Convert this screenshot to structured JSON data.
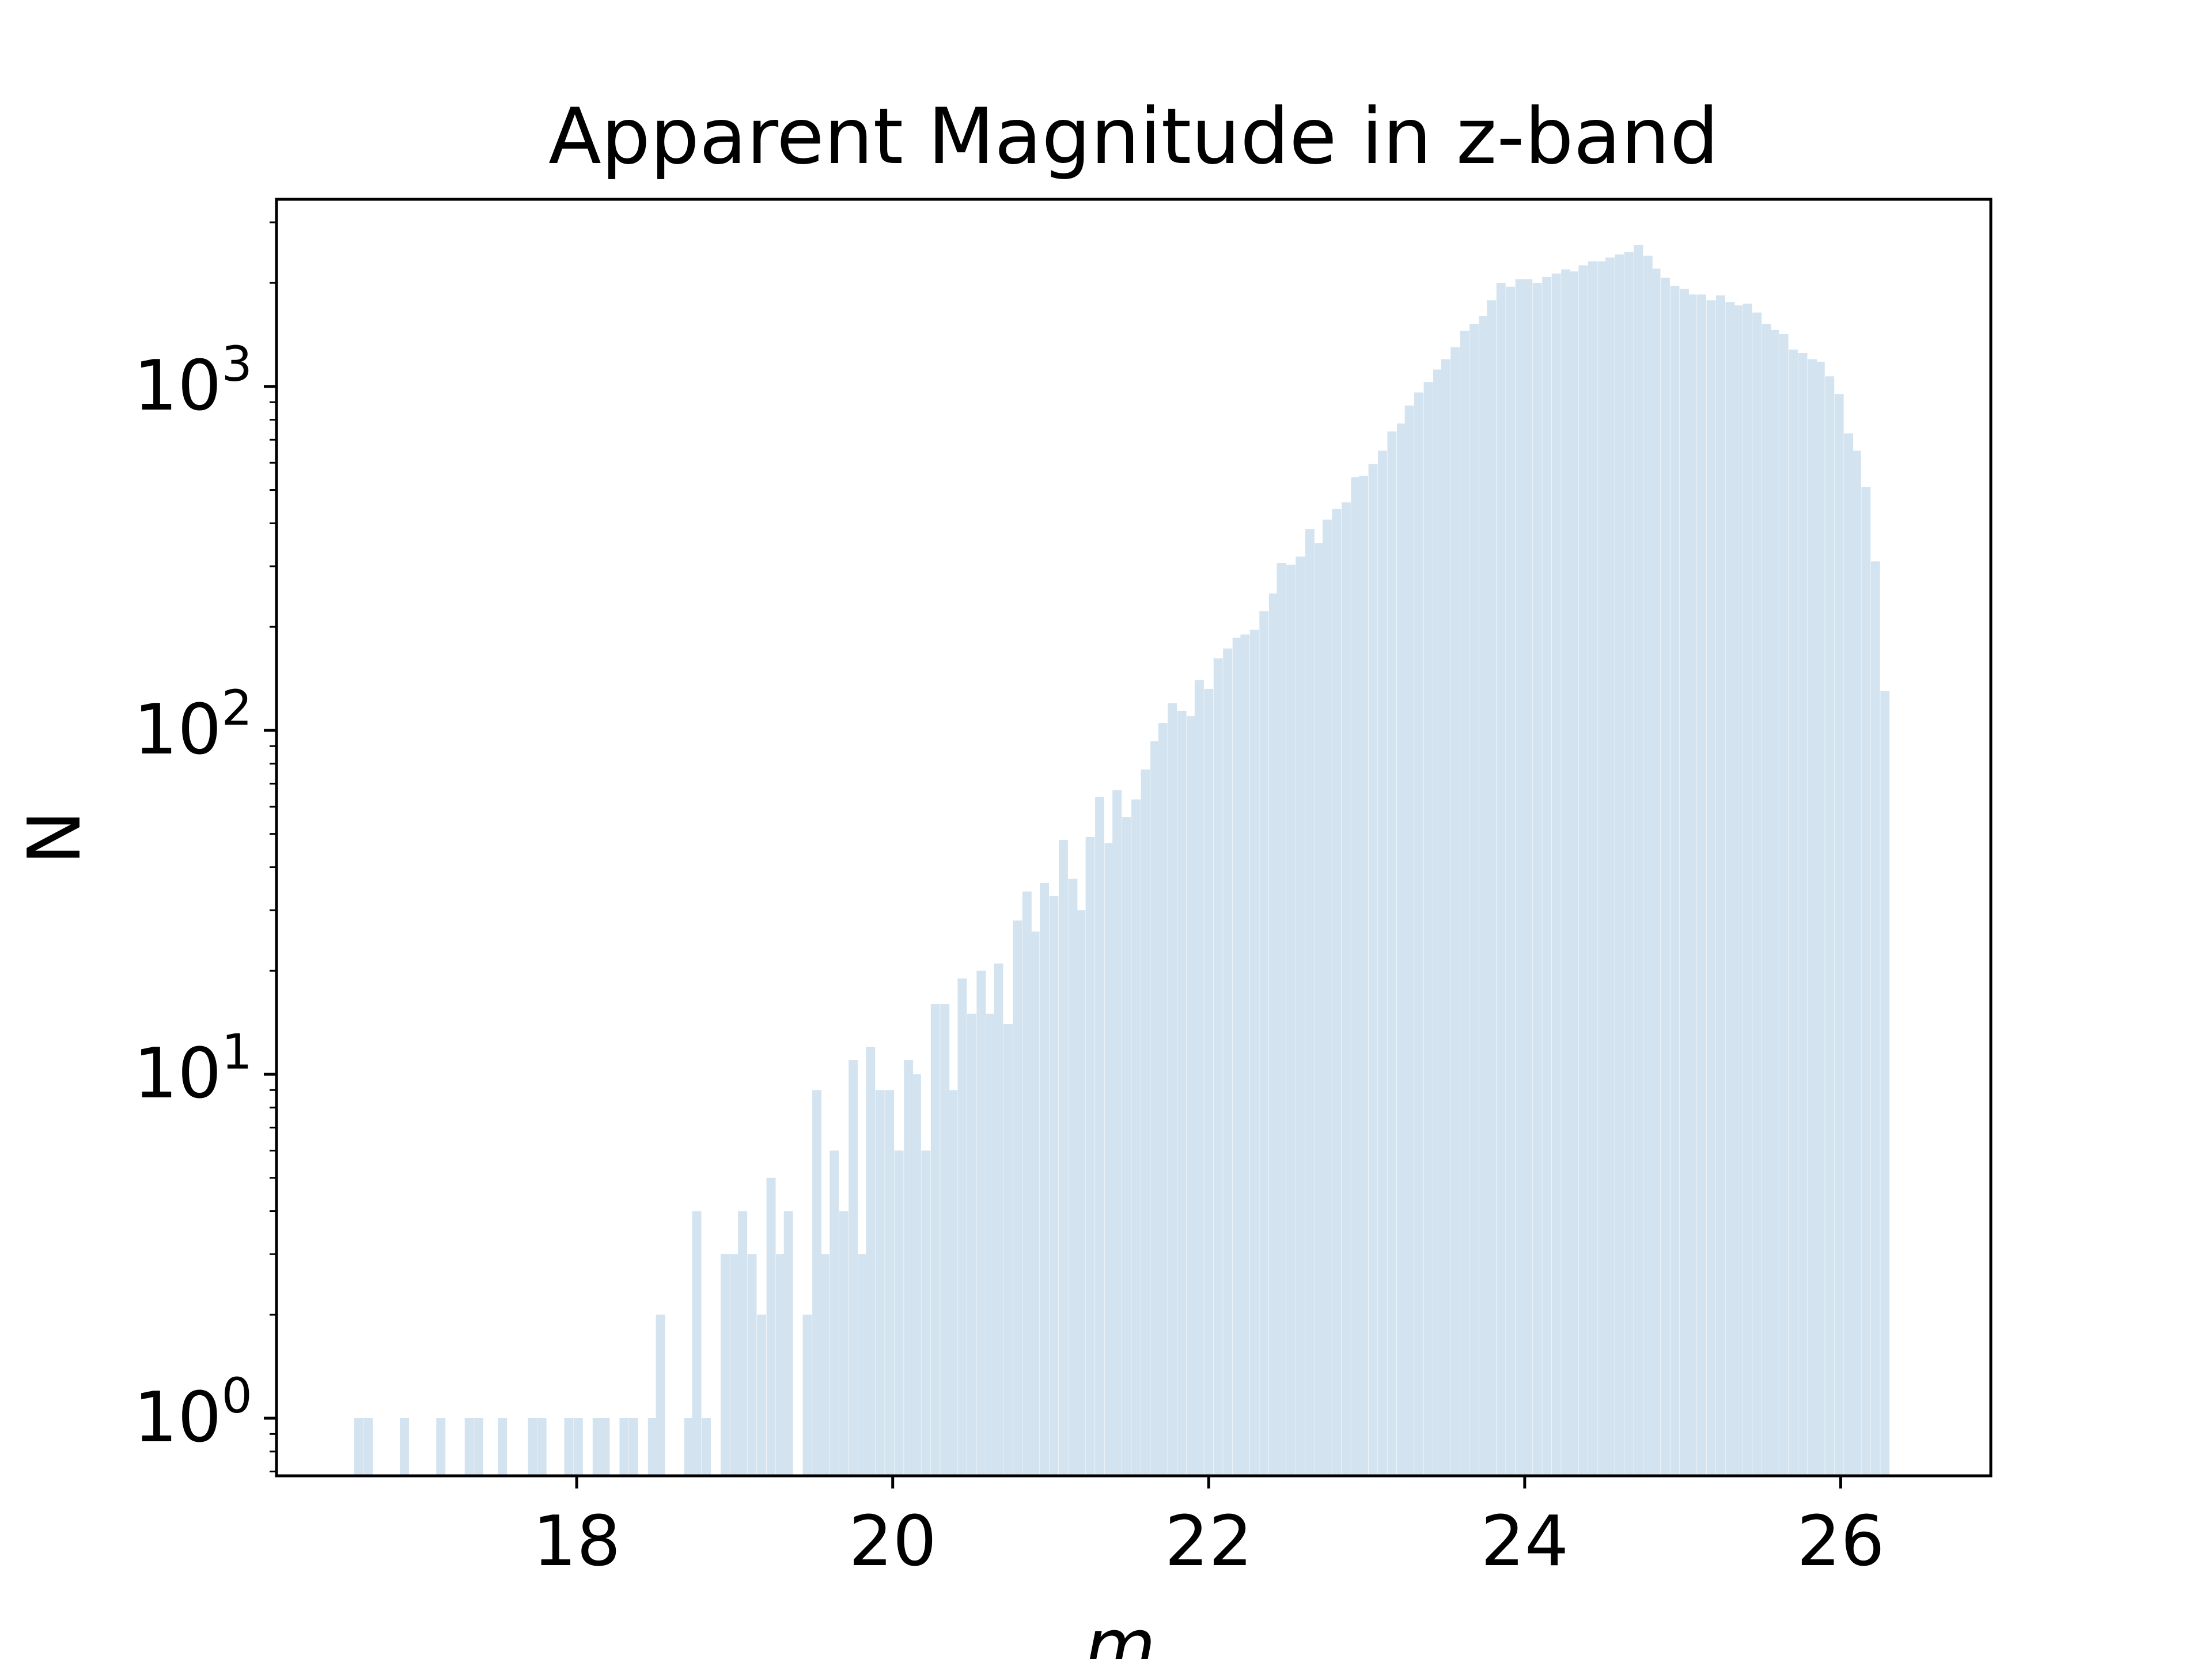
{
  "chart_data": {
    "type": "bar",
    "title": "Apparent Magnitude in z-band",
    "xlabel": "m_z",
    "ylabel": "N",
    "x_ticks": [
      18,
      20,
      22,
      24,
      26
    ],
    "y_ticks": [
      {
        "value": 1,
        "label": "10",
        "exponent": "0"
      },
      {
        "value": 10,
        "label": "10",
        "exponent": "1"
      },
      {
        "value": 100,
        "label": "10",
        "exponent": "2"
      },
      {
        "value": 1000,
        "label": "10",
        "exponent": "3"
      }
    ],
    "xlim": [
      16.1,
      26.95
    ],
    "ylim": [
      0.68,
      3500
    ],
    "yscale": "log",
    "grid": false,
    "legend": "none",
    "bar_color": "#d3e3ef",
    "bin_width": 0.058,
    "bins": [
      [
        16.62,
        1
      ],
      [
        16.68,
        1
      ],
      [
        16.91,
        1
      ],
      [
        17.14,
        1
      ],
      [
        17.32,
        1
      ],
      [
        17.38,
        1
      ],
      [
        17.53,
        1
      ],
      [
        17.72,
        1
      ],
      [
        17.78,
        1
      ],
      [
        17.95,
        1
      ],
      [
        18.01,
        1
      ],
      [
        18.13,
        1
      ],
      [
        18.18,
        1
      ],
      [
        18.3,
        1
      ],
      [
        18.36,
        1
      ],
      [
        18.48,
        1
      ],
      [
        18.53,
        2
      ],
      [
        18.71,
        1
      ],
      [
        18.76,
        4
      ],
      [
        18.82,
        1
      ],
      [
        18.94,
        3
      ],
      [
        19.0,
        3
      ],
      [
        19.05,
        4
      ],
      [
        19.11,
        3
      ],
      [
        19.17,
        2
      ],
      [
        19.23,
        5
      ],
      [
        19.29,
        3
      ],
      [
        19.34,
        4
      ],
      [
        19.46,
        2
      ],
      [
        19.52,
        9
      ],
      [
        19.57,
        3
      ],
      [
        19.63,
        6
      ],
      [
        19.69,
        4
      ],
      [
        19.75,
        11
      ],
      [
        19.81,
        3
      ],
      [
        19.86,
        12
      ],
      [
        19.92,
        9
      ],
      [
        19.98,
        9
      ],
      [
        20.04,
        6
      ],
      [
        20.1,
        11
      ],
      [
        20.15,
        10
      ],
      [
        20.21,
        6
      ],
      [
        20.27,
        16
      ],
      [
        20.33,
        16
      ],
      [
        20.38,
        9
      ],
      [
        20.44,
        19
      ],
      [
        20.5,
        15
      ],
      [
        20.56,
        20
      ],
      [
        20.62,
        15
      ],
      [
        20.67,
        21
      ],
      [
        20.73,
        14
      ],
      [
        20.79,
        28
      ],
      [
        20.85,
        34
      ],
      [
        20.9,
        26
      ],
      [
        20.96,
        36
      ],
      [
        21.02,
        33
      ],
      [
        21.08,
        48
      ],
      [
        21.14,
        37
      ],
      [
        21.19,
        30
      ],
      [
        21.25,
        49
      ],
      [
        21.31,
        64
      ],
      [
        21.37,
        47
      ],
      [
        21.42,
        67
      ],
      [
        21.48,
        56
      ],
      [
        21.54,
        63
      ],
      [
        21.6,
        77
      ],
      [
        21.66,
        93
      ],
      [
        21.71,
        105
      ],
      [
        21.77,
        120
      ],
      [
        21.83,
        114
      ],
      [
        21.89,
        110
      ],
      [
        21.94,
        140
      ],
      [
        22.0,
        132
      ],
      [
        22.06,
        162
      ],
      [
        22.12,
        173
      ],
      [
        22.18,
        186
      ],
      [
        22.23,
        190
      ],
      [
        22.29,
        196
      ],
      [
        22.35,
        222
      ],
      [
        22.41,
        250
      ],
      [
        22.46,
        307
      ],
      [
        22.52,
        303
      ],
      [
        22.58,
        320
      ],
      [
        22.64,
        385
      ],
      [
        22.7,
        350
      ],
      [
        22.75,
        410
      ],
      [
        22.81,
        440
      ],
      [
        22.87,
        460
      ],
      [
        22.93,
        545
      ],
      [
        22.98,
        550
      ],
      [
        23.04,
        595
      ],
      [
        23.1,
        650
      ],
      [
        23.16,
        740
      ],
      [
        23.22,
        780
      ],
      [
        23.27,
        880
      ],
      [
        23.33,
        960
      ],
      [
        23.39,
        1030
      ],
      [
        23.45,
        1120
      ],
      [
        23.5,
        1200
      ],
      [
        23.56,
        1300
      ],
      [
        23.62,
        1450
      ],
      [
        23.68,
        1520
      ],
      [
        23.74,
        1600
      ],
      [
        23.79,
        1780
      ],
      [
        23.85,
        2000
      ],
      [
        23.91,
        1950
      ],
      [
        23.97,
        2050
      ],
      [
        24.02,
        2050
      ],
      [
        24.08,
        2000
      ],
      [
        24.14,
        2080
      ],
      [
        24.2,
        2130
      ],
      [
        24.26,
        2190
      ],
      [
        24.31,
        2160
      ],
      [
        24.37,
        2250
      ],
      [
        24.43,
        2310
      ],
      [
        24.49,
        2310
      ],
      [
        24.54,
        2370
      ],
      [
        24.6,
        2420
      ],
      [
        24.66,
        2460
      ],
      [
        24.72,
        2580
      ],
      [
        24.78,
        2400
      ],
      [
        24.83,
        2200
      ],
      [
        24.89,
        2070
      ],
      [
        24.95,
        1960
      ],
      [
        25.01,
        1920
      ],
      [
        25.06,
        1850
      ],
      [
        25.12,
        1850
      ],
      [
        25.18,
        1780
      ],
      [
        25.24,
        1840
      ],
      [
        25.3,
        1760
      ],
      [
        25.35,
        1720
      ],
      [
        25.41,
        1740
      ],
      [
        25.47,
        1640
      ],
      [
        25.53,
        1520
      ],
      [
        25.58,
        1460
      ],
      [
        25.64,
        1420
      ],
      [
        25.7,
        1280
      ],
      [
        25.76,
        1250
      ],
      [
        25.82,
        1200
      ],
      [
        25.87,
        1180
      ],
      [
        25.93,
        1070
      ],
      [
        25.99,
        950
      ],
      [
        26.05,
        730
      ],
      [
        26.1,
        650
      ],
      [
        26.16,
        510
      ],
      [
        26.22,
        310
      ],
      [
        26.28,
        130
      ]
    ]
  }
}
